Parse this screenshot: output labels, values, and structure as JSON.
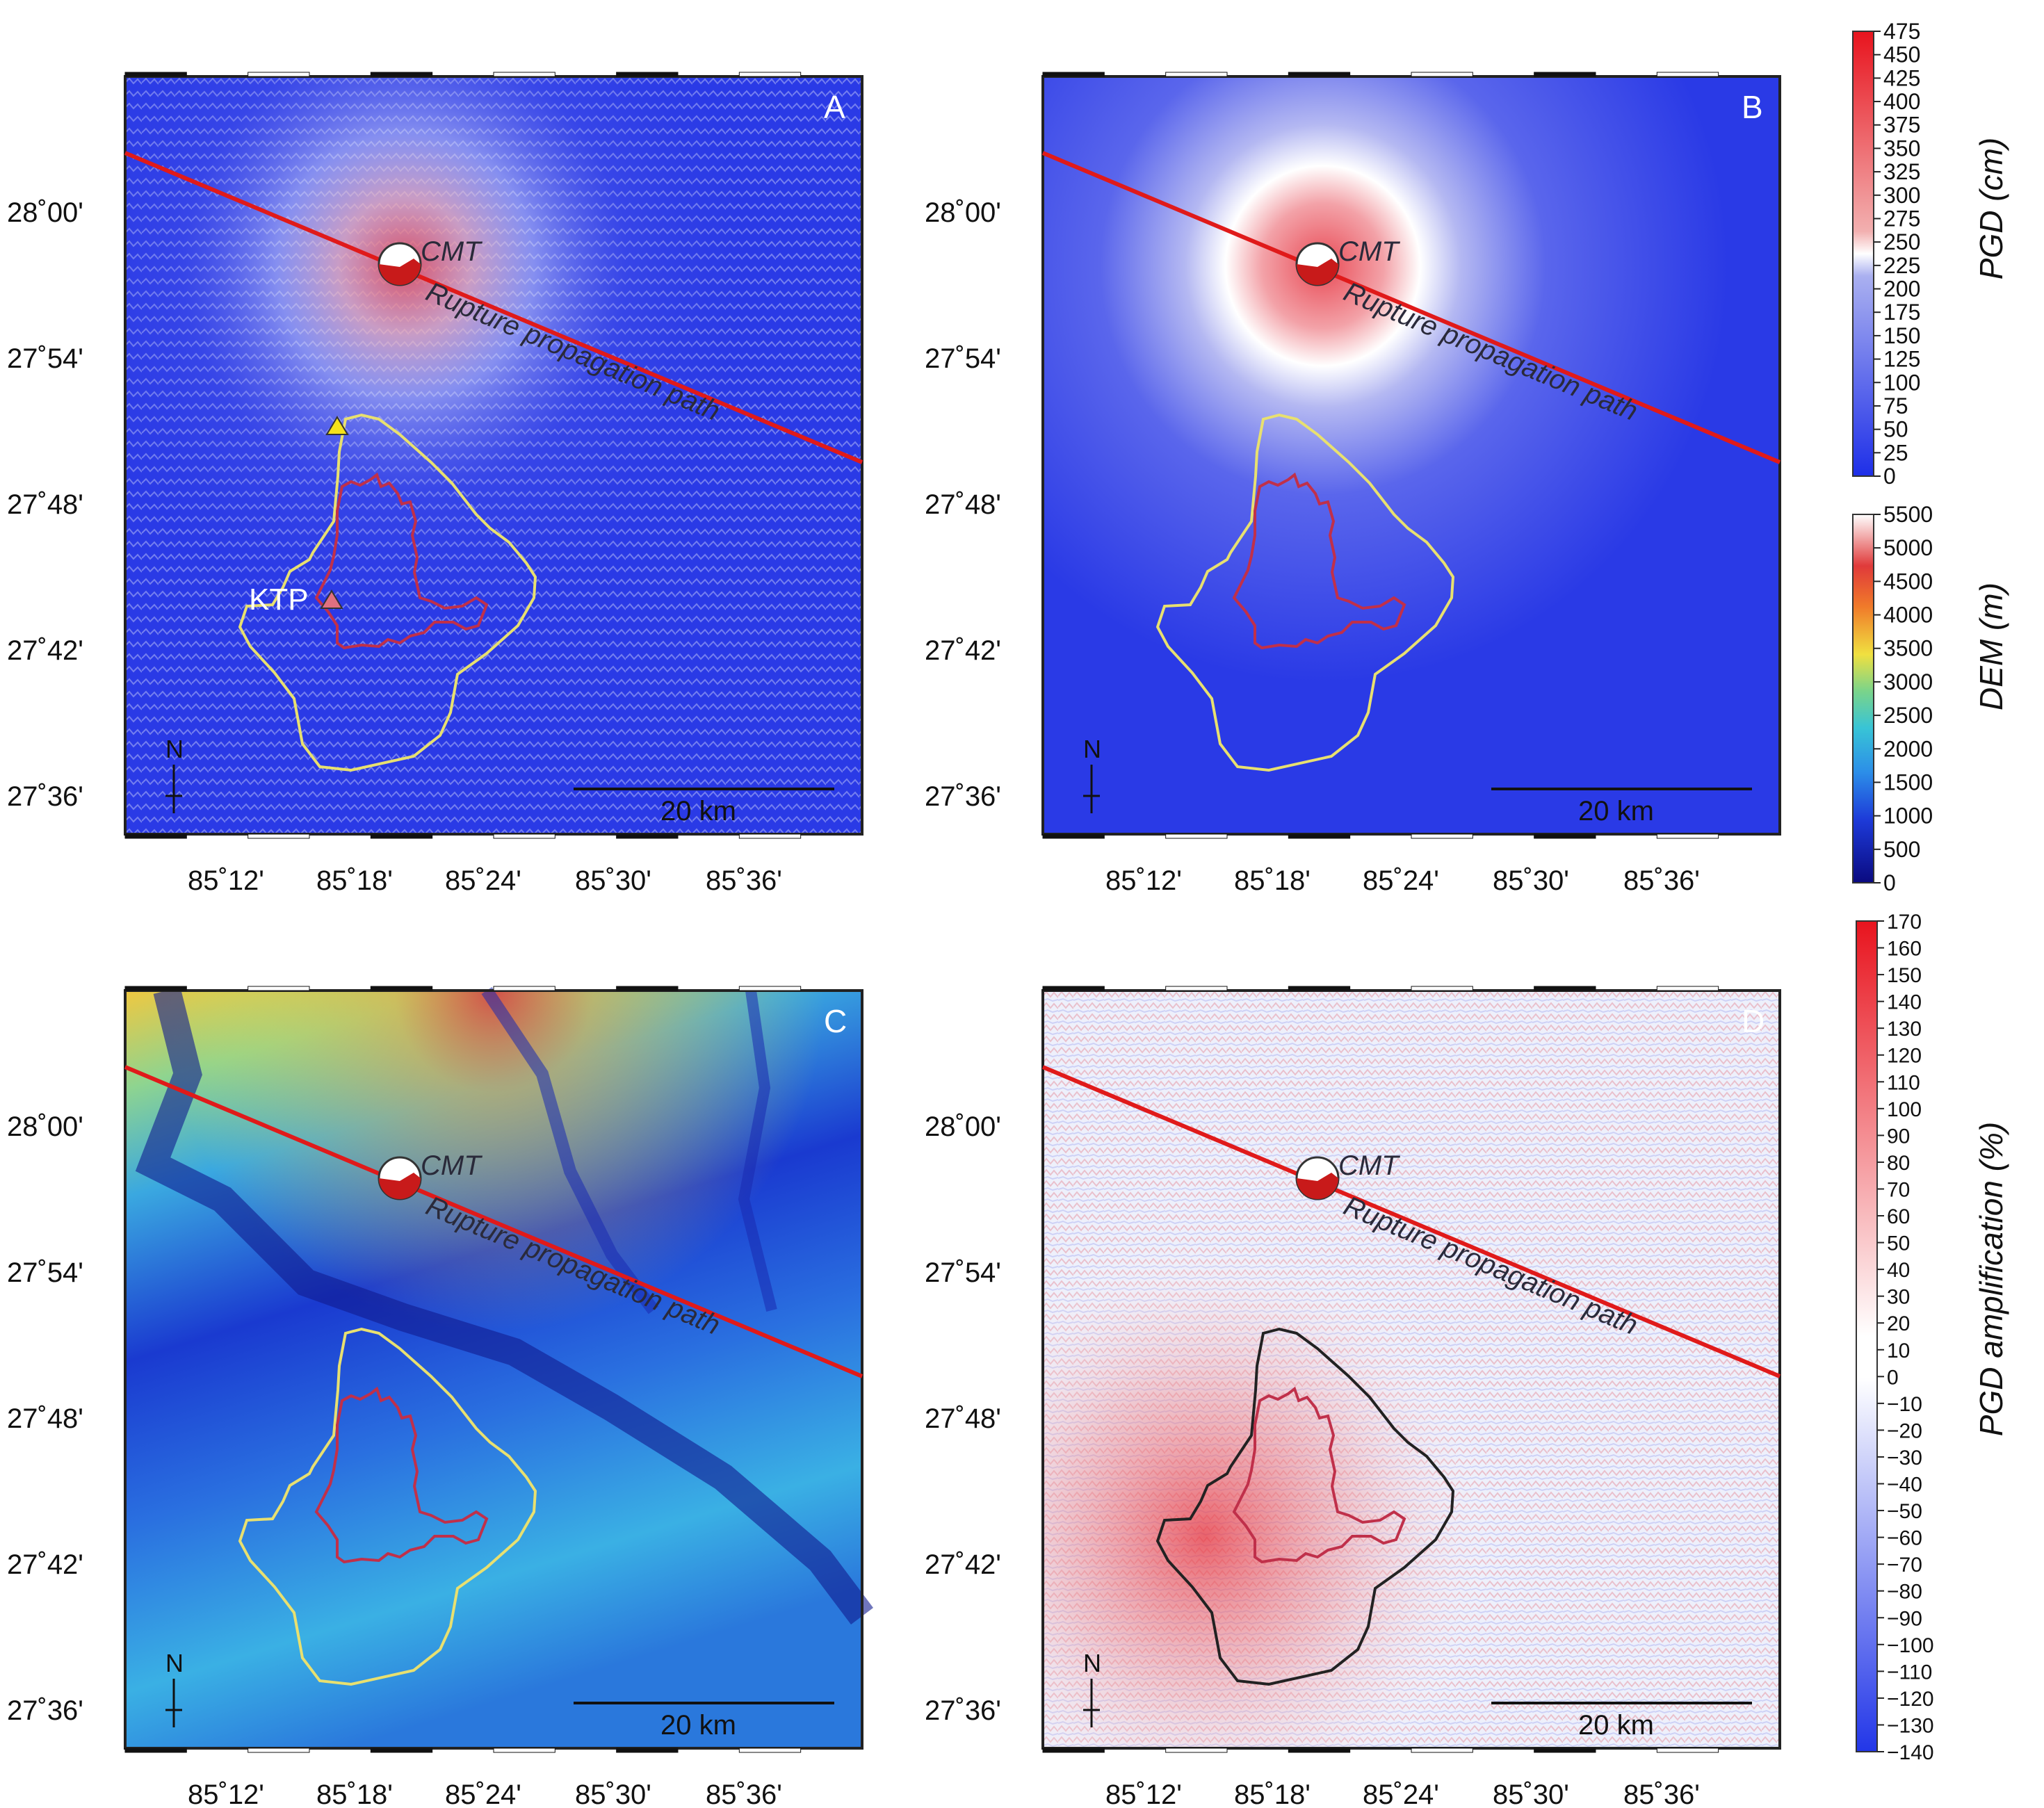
{
  "panels": [
    {
      "letter": "A",
      "type": "pgd"
    },
    {
      "letter": "B",
      "type": "pgd_smooth"
    },
    {
      "letter": "C",
      "type": "dem"
    },
    {
      "letter": "D",
      "type": "amp"
    }
  ],
  "axes": {
    "lat_labels": [
      "28˚00'",
      "27˚54'",
      "27˚48'",
      "27˚42'",
      "27˚36'"
    ],
    "lon_labels": [
      "85˚12'",
      "85˚18'",
      "85˚24'",
      "85˚30'",
      "85˚36'"
    ]
  },
  "annotations": {
    "cmt": "CMT",
    "rupture": "Rupture propagation path",
    "station": "KTP",
    "north": "N",
    "scalebar": "20 km"
  },
  "colorbars": {
    "pgd": {
      "title": "PGD (cm)",
      "ticks": [
        "475",
        "450",
        "425",
        "400",
        "375",
        "350",
        "325",
        "300",
        "275",
        "250",
        "225",
        "200",
        "175",
        "150",
        "125",
        "100",
        "75",
        "50",
        "25",
        "0"
      ]
    },
    "dem": {
      "title": "DEM (m)",
      "ticks": [
        "5500",
        "5000",
        "4500",
        "4000",
        "3500",
        "3000",
        "2500",
        "2000",
        "1500",
        "1000",
        "500",
        "0"
      ]
    },
    "amp": {
      "title": "PGD amplification (%)",
      "ticks": [
        "170",
        "160",
        "150",
        "140",
        "130",
        "120",
        "110",
        "100",
        "90",
        "80",
        "70",
        "60",
        "50",
        "40",
        "30",
        "20",
        "10",
        "0",
        "−10",
        "−20",
        "−30",
        "−40",
        "−50",
        "−60",
        "−70",
        "−80",
        "−90",
        "−100",
        "−110",
        "−120",
        "−130",
        "−140"
      ]
    }
  },
  "colors": {
    "rupture_line": "#e01a1a",
    "valley_outline": "#e8e070",
    "valley_outline_panel_d": "#222222",
    "city_outline": "#c0304a",
    "pgd_low": "#2436e6",
    "pgd_high": "#e22a2a",
    "station_triangle": "#f5e21a",
    "ktp_triangle": "#e07080"
  }
}
